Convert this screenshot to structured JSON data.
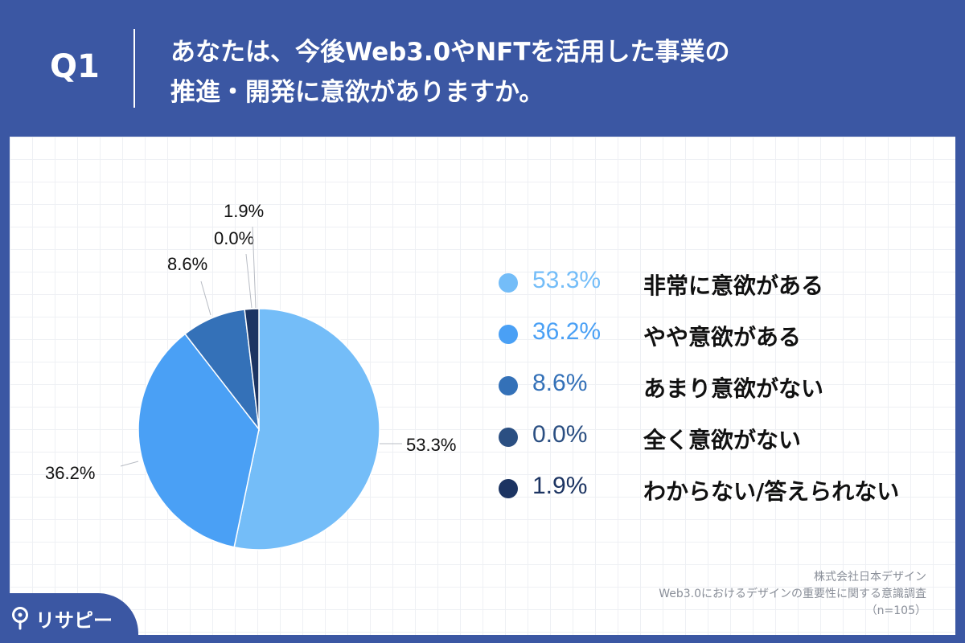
{
  "header": {
    "question_label": "Q1",
    "title_line1": "あなたは、今後Web3.0やNFTを活用した事業の",
    "title_line2": "推進・開発に意欲がありますか。"
  },
  "chart_data": {
    "type": "pie",
    "slices": [
      {
        "label": "非常に意欲がある",
        "value": 53.3,
        "display": "53.3%",
        "color": "#74bdf8"
      },
      {
        "label": "やや意欲がある",
        "value": 36.2,
        "display": "36.2%",
        "color": "#4aa0f5"
      },
      {
        "label": "あまり意欲がない",
        "value": 8.6,
        "display": "8.6%",
        "color": "#3471b8"
      },
      {
        "label": "全く意欲がない",
        "value": 0.0,
        "display": "0.0%",
        "color": "#2b4f82"
      },
      {
        "label": "わからない/答えられない",
        "value": 1.9,
        "display": "1.9%",
        "color": "#1c3462"
      }
    ],
    "legend_position": "right"
  },
  "colors": {
    "header_bg": "#3b57a3",
    "legend_pct_colors": [
      "#74bdf8",
      "#4aa0f5",
      "#3471b8",
      "#2b4f82",
      "#1c3462"
    ]
  },
  "source": {
    "line1": "株式会社日本デザイン",
    "line2": "Web3.0におけるデザインの重要性に関する意識調査",
    "line3": "（n=105）"
  },
  "logo": {
    "text": "リサピー",
    "icon": "location-pin-icon"
  }
}
